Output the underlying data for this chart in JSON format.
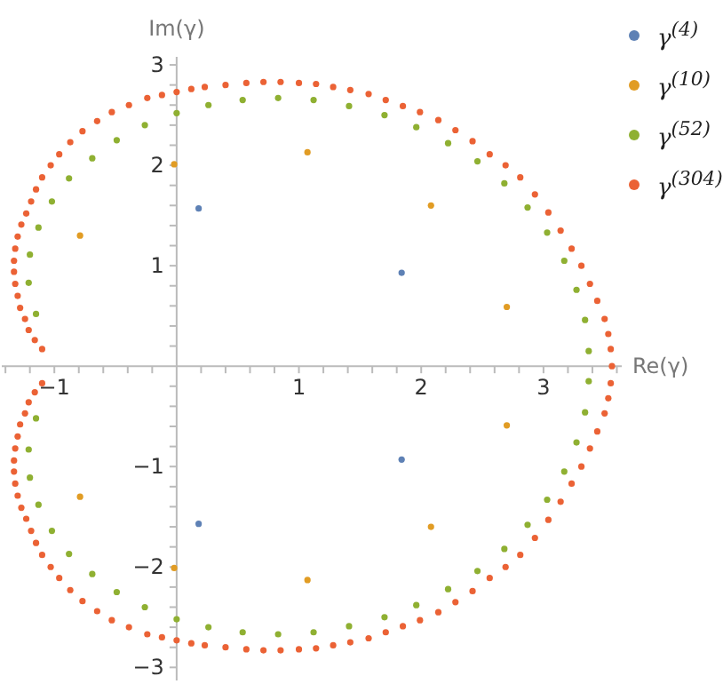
{
  "chart_data": {
    "type": "scatter",
    "xlabel": "Re(γ)",
    "ylabel": "Im(γ)",
    "xlim": [
      -1.43,
      3.64
    ],
    "ylim": [
      -3.13,
      3.08
    ],
    "xticks": [
      {
        "value": -1.4,
        "label": null
      },
      {
        "value": -1.2,
        "label": null
      },
      -1,
      {
        "value": -0.8,
        "label": null
      },
      {
        "value": -0.6,
        "label": null
      },
      {
        "value": -0.4,
        "label": null
      },
      {
        "value": -0.2,
        "label": null
      },
      {
        "value": 0.2,
        "label": null
      },
      {
        "value": 0.4,
        "label": null
      },
      {
        "value": 0.6,
        "label": null
      },
      {
        "value": 0.8,
        "label": null
      },
      1,
      {
        "value": 1.2,
        "label": null
      },
      {
        "value": 1.4,
        "label": null
      },
      {
        "value": 1.6,
        "label": null
      },
      {
        "value": 1.8,
        "label": null
      },
      2,
      {
        "value": 2.2,
        "label": null
      },
      {
        "value": 2.4,
        "label": null
      },
      {
        "value": 2.6,
        "label": null
      },
      {
        "value": 2.8,
        "label": null
      },
      3,
      {
        "value": 3.2,
        "label": null
      },
      {
        "value": 3.4,
        "label": null
      },
      {
        "value": 3.6,
        "label": null
      }
    ],
    "yticks": [
      -3,
      {
        "value": -2.8,
        "label": null
      },
      {
        "value": -2.6,
        "label": null
      },
      {
        "value": -2.4,
        "label": null
      },
      {
        "value": -2.2,
        "label": null
      },
      -2,
      {
        "value": -1.8,
        "label": null
      },
      {
        "value": -1.6,
        "label": null
      },
      {
        "value": -1.4,
        "label": null
      },
      {
        "value": -1.2,
        "label": null
      },
      -1,
      {
        "value": -0.8,
        "label": null
      },
      {
        "value": -0.6,
        "label": null
      },
      {
        "value": -0.4,
        "label": null
      },
      {
        "value": -0.2,
        "label": null
      },
      {
        "value": 0.2,
        "label": null
      },
      {
        "value": 0.4,
        "label": null
      },
      {
        "value": 0.6,
        "label": null
      },
      {
        "value": 0.8,
        "label": null
      },
      1,
      {
        "value": 1.2,
        "label": null
      },
      {
        "value": 1.4,
        "label": null
      },
      {
        "value": 1.6,
        "label": null
      },
      {
        "value": 1.8,
        "label": null
      },
      2,
      {
        "value": 2.2,
        "label": null
      },
      {
        "value": 2.4,
        "label": null
      },
      {
        "value": 2.6,
        "label": null
      },
      {
        "value": 2.8,
        "label": null
      },
      3
    ],
    "grid": false,
    "legend": "right",
    "marker": "circle",
    "series": [
      {
        "name": "γ$^{(4)}$",
        "color": "#5e81b5",
        "x": [
          0.18,
          1.84,
          1.84,
          0.18
        ],
        "values": [
          1.57,
          0.93,
          -0.93,
          -1.57
        ]
      },
      {
        "name": "γ$^{(10)}$",
        "color": "#e19c24",
        "x": [
          -0.02,
          -0.79,
          1.07,
          2.08,
          2.7,
          -0.02,
          -0.79,
          1.07,
          2.08,
          2.7
        ],
        "values": [
          2.01,
          1.3,
          2.13,
          1.6,
          0.59,
          -2.01,
          -1.3,
          -2.13,
          -1.6,
          -0.59
        ]
      },
      {
        "name": "γ$^{(52)}$",
        "color": "#8fb032",
        "x": [
          0,
          -0.26,
          -0.49,
          -0.69,
          -0.88,
          -1.02,
          -1.13,
          -1.2,
          -1.21,
          -1.15,
          0.26,
          0.54,
          0.83,
          1.12,
          1.41,
          1.7,
          1.96,
          2.22,
          2.46,
          2.68,
          2.87,
          3.03,
          3.17,
          3.27,
          3.34,
          3.37,
          0,
          -0.26,
          -0.49,
          -0.69,
          -0.88,
          -1.02,
          -1.13,
          -1.2,
          -1.21,
          -1.15,
          0.26,
          0.54,
          0.83,
          1.12,
          1.41,
          1.7,
          1.96,
          2.22,
          2.46,
          2.68,
          2.87,
          3.03,
          3.17,
          3.27,
          3.34,
          3.37
        ],
        "values": [
          2.52,
          2.4,
          2.25,
          2.07,
          1.87,
          1.64,
          1.38,
          1.11,
          0.83,
          0.52,
          2.6,
          2.65,
          2.67,
          2.65,
          2.59,
          2.5,
          2.38,
          2.22,
          2.04,
          1.82,
          1.58,
          1.33,
          1.05,
          0.76,
          0.46,
          0.15,
          -2.52,
          -2.4,
          -2.25,
          -2.07,
          -1.87,
          -1.64,
          -1.38,
          -1.11,
          -0.83,
          -0.52,
          -2.6,
          -2.65,
          -2.67,
          -2.65,
          -2.59,
          -2.5,
          -2.38,
          -2.22,
          -2.04,
          -1.82,
          -1.58,
          -1.33,
          -1.05,
          -0.76,
          -0.46,
          -0.15
        ]
      },
      {
        "name": "γ$^{(304)}$",
        "color": "#eb6235",
        "x": [
          -1.1,
          -1.16,
          -1.21,
          -1.24,
          -1.28,
          -1.3,
          -1.32,
          -1.33,
          -1.33,
          -1.32,
          -1.3,
          -1.27,
          -1.23,
          -1.19,
          -1.15,
          -1.1,
          -1.03,
          -0.96,
          -0.87,
          -0.77,
          -0.65,
          -0.53,
          -0.39,
          -0.24,
          -0.12,
          0.0,
          0.12,
          0.23,
          0.4,
          0.57,
          0.71,
          0.85,
          1.0,
          1.14,
          1.28,
          1.42,
          1.57,
          1.71,
          1.85,
          1.99,
          2.14,
          2.28,
          2.42,
          2.56,
          2.69,
          2.81,
          2.93,
          3.04,
          3.14,
          3.23,
          3.31,
          3.38,
          3.44,
          3.5,
          3.53,
          3.55,
          3.56,
          3.55,
          3.53,
          3.5,
          3.44,
          3.38,
          3.31,
          3.23,
          3.14,
          3.04,
          2.93,
          2.81,
          2.69,
          2.56,
          2.42,
          2.28,
          2.14,
          1.99,
          1.85,
          1.71,
          1.57,
          1.42,
          1.28,
          1.14,
          1.0,
          0.85,
          0.71,
          0.57,
          0.4,
          0.23,
          0.12,
          0.0,
          -0.12,
          -0.24,
          -0.39,
          -0.53,
          -0.65,
          -0.77,
          -0.87,
          -0.96,
          -1.03,
          -1.1,
          -1.15,
          -1.19,
          -1.23,
          -1.27,
          -1.3,
          -1.32,
          -1.33,
          -1.33,
          -1.32,
          -1.3,
          -1.28,
          -1.24,
          -1.21,
          -1.16,
          -1.1
        ],
        "values": [
          0.17,
          0.26,
          0.36,
          0.47,
          0.58,
          0.7,
          0.82,
          0.94,
          1.05,
          1.17,
          1.29,
          1.41,
          1.52,
          1.64,
          1.76,
          1.88,
          2.0,
          2.11,
          2.23,
          2.34,
          2.44,
          2.53,
          2.6,
          2.67,
          2.7,
          2.73,
          2.76,
          2.78,
          2.8,
          2.82,
          2.83,
          2.83,
          2.82,
          2.81,
          2.78,
          2.75,
          2.71,
          2.65,
          2.59,
          2.53,
          2.45,
          2.35,
          2.24,
          2.11,
          2.0,
          1.88,
          1.71,
          1.53,
          1.35,
          1.17,
          1.0,
          0.82,
          0.65,
          0.47,
          0.32,
          0.17,
          0.0,
          -0.17,
          -0.32,
          -0.47,
          -0.65,
          -0.82,
          -1.0,
          -1.17,
          -1.35,
          -1.53,
          -1.71,
          -1.88,
          -2.0,
          -2.11,
          -2.24,
          -2.35,
          -2.45,
          -2.53,
          -2.59,
          -2.65,
          -2.71,
          -2.75,
          -2.78,
          -2.81,
          -2.82,
          -2.83,
          -2.83,
          -2.82,
          -2.8,
          -2.78,
          -2.76,
          -2.73,
          -2.7,
          -2.67,
          -2.6,
          -2.53,
          -2.44,
          -2.34,
          -2.23,
          -2.11,
          -2.0,
          -1.88,
          -1.76,
          -1.64,
          -1.52,
          -1.41,
          -1.29,
          -1.17,
          -1.05,
          -0.94,
          -0.82,
          -0.7,
          -0.58,
          -0.47,
          -0.36,
          -0.26,
          -0.17
        ]
      }
    ]
  }
}
